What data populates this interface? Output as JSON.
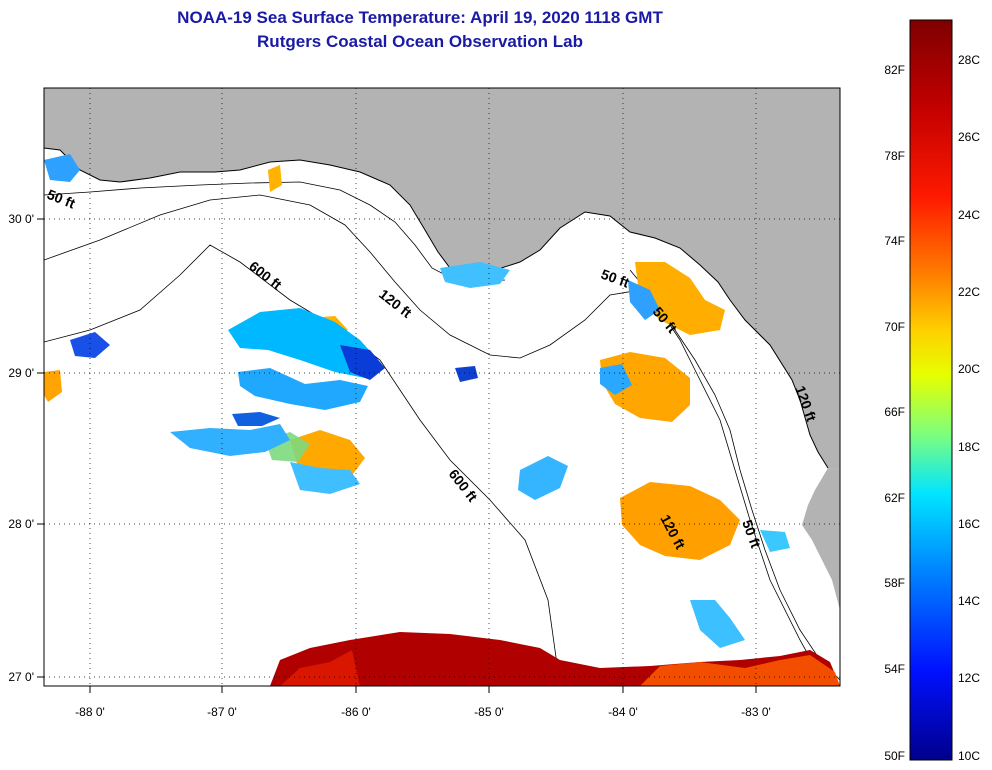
{
  "header": {
    "title_line1": "NOAA-19 Sea Surface Temperature:  April 19, 2020 1118 GMT",
    "title_line2": "Rutgers Coastal Ocean Observation Lab"
  },
  "map": {
    "lon_ticks": [
      "-88 0'",
      "-87 0'",
      "-86 0'",
      "-85 0'",
      "-84 0'",
      "-83 0'"
    ],
    "lat_ticks": [
      "30 0'",
      "29 0'",
      "28 0'",
      "27 0'"
    ],
    "contour_labels": [
      "50 ft",
      "600 ft",
      "120 ft",
      "600 ft",
      "50 ft",
      "120 ft",
      "50 ft",
      "120 ft",
      "50 ft"
    ],
    "land_color": "#b3b3b3",
    "cloud_color": "#ffffff"
  },
  "colorbar": {
    "fahrenheit_labels": [
      "82F",
      "78F",
      "74F",
      "70F",
      "66F",
      "62F",
      "58F",
      "54F",
      "50F"
    ],
    "celsius_labels": [
      "28C",
      "26C",
      "24C",
      "22C",
      "20C",
      "18C",
      "16C",
      "14C",
      "12C",
      "10C"
    ],
    "colors": [
      "#7f0000",
      "#c40000",
      "#ff1a00",
      "#ff7a00",
      "#ffd000",
      "#e6ff00",
      "#7dff7d",
      "#00e5ff",
      "#0088ff",
      "#0010ff",
      "#00008b"
    ]
  }
}
